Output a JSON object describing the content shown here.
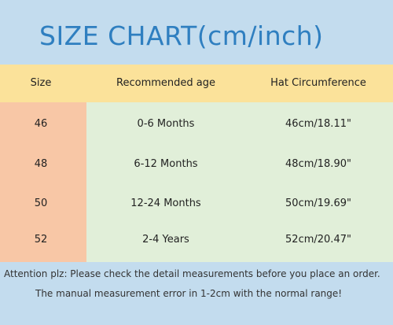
{
  "title": "SIZE CHART(cm/inch)",
  "headers": {
    "size": "Size",
    "age": "Recommended age",
    "hat": "Hat Circumference"
  },
  "rows": [
    {
      "size": "46",
      "age": "0-6 Months",
      "hat": "46cm/18.11\""
    },
    {
      "size": "48",
      "age": "6-12 Months",
      "hat": "48cm/18.90\""
    },
    {
      "size": "50",
      "age": "12-24 Months",
      "hat": "50cm/19.69\""
    },
    {
      "size": "52",
      "age": "2-4 Years",
      "hat": "52cm/20.47\""
    }
  ],
  "notes": {
    "line1": "Attention plz:  Please check the detail measurements before you place an order.",
    "line2": "The manual measurement error in 1-2cm with the normal range!"
  },
  "colors": {
    "title_band": "#c3dcee",
    "title_text": "#2f7fc0",
    "header_band": "#fbe29a",
    "size_column": "#f8c7a6",
    "data_area": "#e1efd9",
    "note_band": "#c3dcee"
  }
}
